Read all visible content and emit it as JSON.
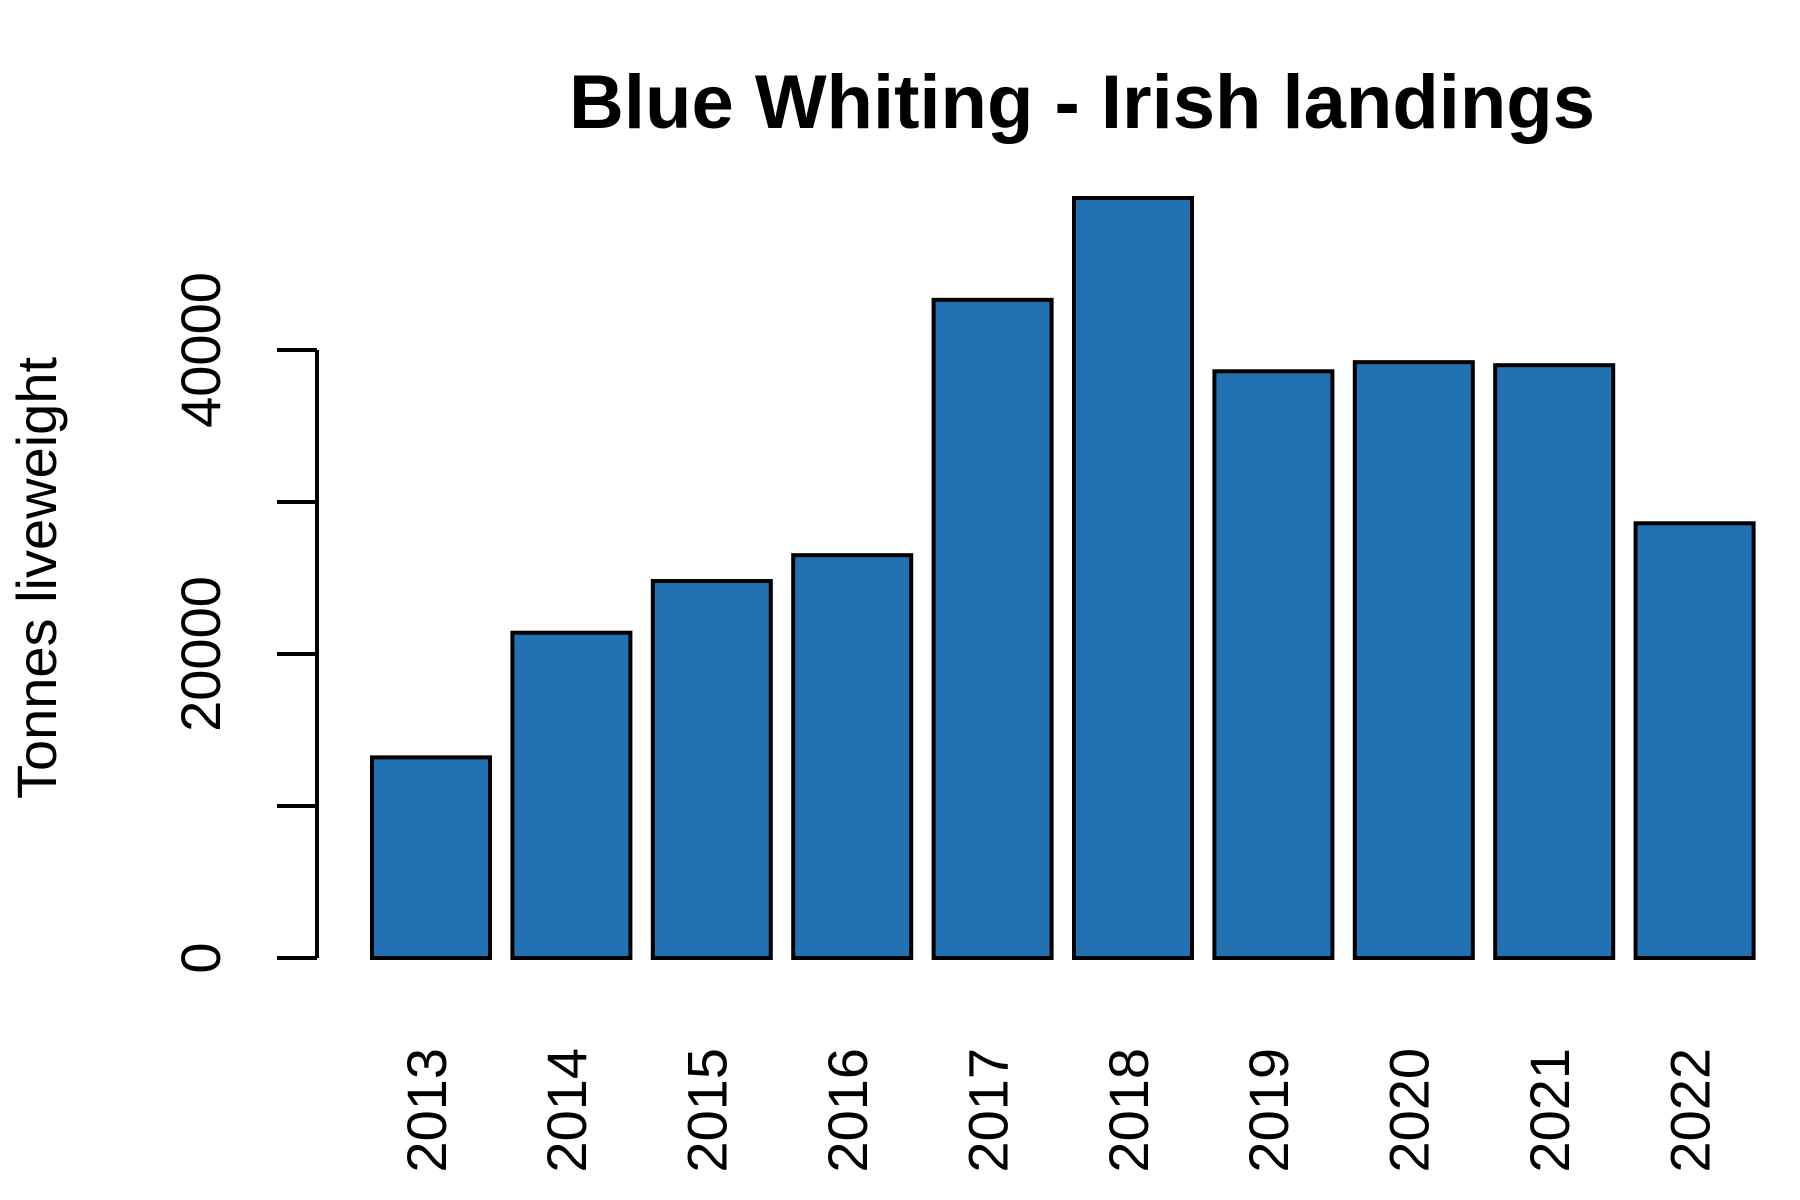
{
  "chart_data": {
    "type": "bar",
    "title": "Blue Whiting - Irish landings",
    "xlabel": "",
    "ylabel": "Tonnes liveweight",
    "categories": [
      "2013",
      "2014",
      "2015",
      "2016",
      "2017",
      "2018",
      "2019",
      "2020",
      "2021",
      "2022"
    ],
    "values": [
      13200,
      21400,
      24800,
      26500,
      43300,
      50000,
      38600,
      39200,
      39000,
      28600
    ],
    "ylim": [
      0,
      50000
    ],
    "y_ticks": [
      0,
      10000,
      20000,
      30000,
      40000
    ],
    "y_tick_labels": [
      "0",
      "",
      "20000",
      "",
      "40000"
    ],
    "bar_color": "#2271b3",
    "bar_outline_color": "#000000",
    "grid": false,
    "legend": "none"
  }
}
